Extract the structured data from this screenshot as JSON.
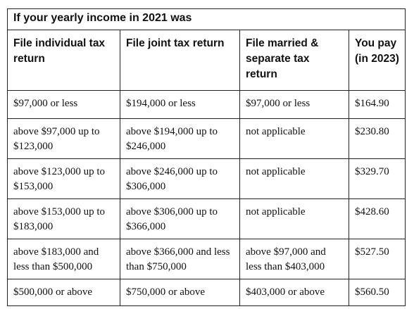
{
  "title": "If your yearly income in 2021 was",
  "headers": {
    "individual": "File individual tax return",
    "joint": "File joint tax return",
    "married_separate": "File married & separate tax return",
    "you_pay": "You pay (in 2023)"
  },
  "rows": [
    {
      "individual": "$97,000 or less",
      "joint": "$194,000 or less",
      "married_separate": "$97,000 or less",
      "you_pay": "$164.90"
    },
    {
      "individual": "above $97,000 up to $123,000",
      "joint": "above $194,000 up to $246,000",
      "married_separate": "not applicable",
      "you_pay": "$230.80"
    },
    {
      "individual": "above $123,000 up to $153,000",
      "joint": "above $246,000 up to $306,000",
      "married_separate": "not applicable",
      "you_pay": "$329.70"
    },
    {
      "individual": "above $153,000 up to $183,000",
      "joint": "above $306,000 up to $366,000",
      "married_separate": "not applicable",
      "you_pay": "$428.60"
    },
    {
      "individual": "above $183,000 and less than $500,000",
      "joint": "above $366,000 and less than $750,000",
      "married_separate": "above $97,000 and less than $403,000",
      "you_pay": "$527.50"
    },
    {
      "individual": "$500,000 or above",
      "joint": "$750,000 or above",
      "married_separate": "$403,000 or above",
      "you_pay": "$560.50"
    }
  ]
}
